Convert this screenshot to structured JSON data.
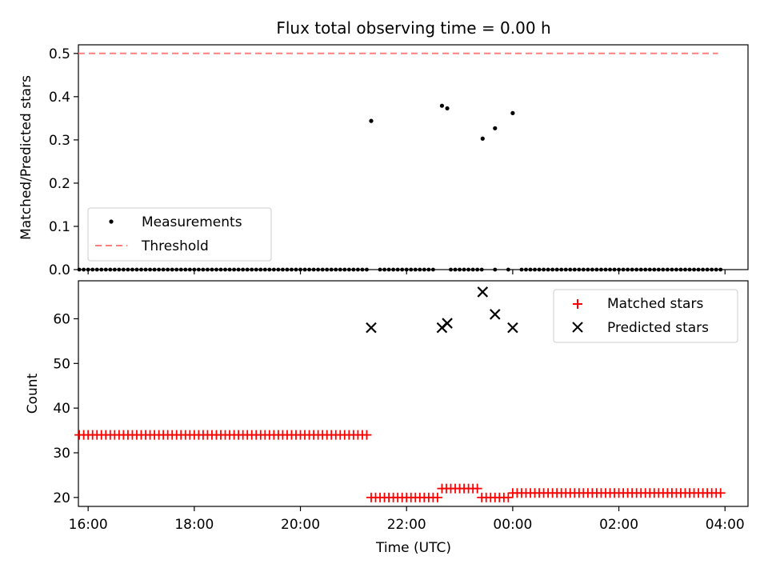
{
  "chart_data": [
    {
      "type": "scatter",
      "title": "Flux total observing time = 0.00 h",
      "xlabel": "",
      "ylabel": "Matched/Predicted stars",
      "ylim": [
        0.0,
        0.52
      ],
      "yticks": [
        "0.0",
        "0.1",
        "0.2",
        "0.3",
        "0.4",
        "0.5"
      ],
      "ytick_values": [
        0.0,
        0.1,
        0.2,
        0.3,
        0.4,
        0.5
      ],
      "xlim": [
        "15:49",
        "04:26"
      ],
      "legend": {
        "placement": "lower-left",
        "entries": [
          {
            "label": "Measurements",
            "marker": "dot",
            "color": "#000000"
          },
          {
            "label": "Threshold",
            "marker": "dashed-line",
            "color": "#ff7f7f"
          }
        ]
      },
      "threshold": {
        "value": 0.5,
        "x_start": "15:49",
        "x_end": "03:52",
        "color": "#ff7f7f"
      },
      "zero_measurements": {
        "value": 0.0,
        "start": "15:50",
        "end": "03:55",
        "step_min": 5,
        "gaps": [
          [
            "21:19",
            "21:25"
          ],
          [
            "22:35",
            "22:45"
          ],
          [
            "23:26",
            "23:36"
          ],
          [
            "23:42",
            "23:50"
          ],
          [
            "23:57",
            "00:05"
          ]
        ]
      },
      "points": [
        {
          "x": "21:20",
          "y": 0.344
        },
        {
          "x": "22:40",
          "y": 0.379
        },
        {
          "x": "22:46",
          "y": 0.373
        },
        {
          "x": "23:26",
          "y": 0.303
        },
        {
          "x": "23:40",
          "y": 0.327
        },
        {
          "x": "00:00",
          "y": 0.362
        }
      ]
    },
    {
      "type": "scatter",
      "title": "",
      "xlabel": "Time (UTC)",
      "ylabel": "Count",
      "ylim": [
        18,
        68.5
      ],
      "yticks": [
        "20",
        "30",
        "40",
        "50",
        "60"
      ],
      "ytick_values": [
        20,
        30,
        40,
        50,
        60
      ],
      "xticks": [
        "16:00",
        "18:00",
        "20:00",
        "22:00",
        "00:00",
        "02:00",
        "04:00"
      ],
      "xtick_values": [
        "16:00",
        "18:00",
        "20:00",
        "22:00",
        "00:00",
        "02:00",
        "04:00"
      ],
      "xlim": [
        "15:49",
        "04:26"
      ],
      "legend": {
        "placement": "upper-right",
        "entries": [
          {
            "label": "Matched stars",
            "marker": "plus",
            "color": "#ff0000"
          },
          {
            "label": "Predicted stars",
            "marker": "x",
            "color": "#000000"
          }
        ]
      },
      "matched_stars_runs": [
        {
          "start": "15:50",
          "end": "21:15",
          "value": 34
        },
        {
          "start": "21:20",
          "end": "22:35",
          "value": 20
        },
        {
          "start": "22:40",
          "end": "23:20",
          "value": 22
        },
        {
          "start": "23:25",
          "end": "23:55",
          "value": 20
        },
        {
          "start": "00:00",
          "end": "03:55",
          "value": 21
        }
      ],
      "predicted_stars": [
        {
          "x": "21:20",
          "y": 58
        },
        {
          "x": "22:40",
          "y": 58
        },
        {
          "x": "22:46",
          "y": 59
        },
        {
          "x": "23:26",
          "y": 66
        },
        {
          "x": "23:40",
          "y": 61
        },
        {
          "x": "00:00",
          "y": 58
        }
      ]
    }
  ]
}
